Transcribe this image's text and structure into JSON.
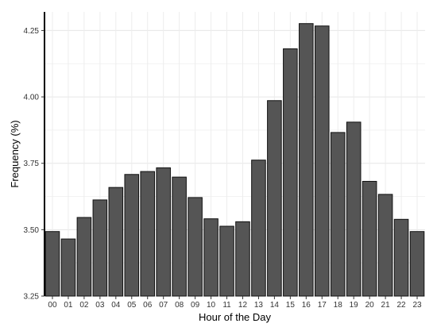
{
  "chart_data": {
    "type": "bar",
    "title": "",
    "xlabel": "Hour of the Day",
    "ylabel": "Frequency (%)",
    "categories": [
      "00",
      "01",
      "02",
      "03",
      "04",
      "05",
      "06",
      "07",
      "08",
      "09",
      "10",
      "11",
      "12",
      "13",
      "14",
      "15",
      "16",
      "17",
      "18",
      "19",
      "20",
      "21",
      "22",
      "23"
    ],
    "values": [
      3.493,
      3.465,
      3.546,
      3.612,
      3.659,
      3.708,
      3.719,
      3.733,
      3.698,
      3.621,
      3.541,
      3.513,
      3.53,
      3.762,
      3.986,
      4.181,
      4.276,
      4.267,
      3.866,
      3.905,
      3.682,
      3.633,
      3.539,
      3.493
    ],
    "ylim": [
      3.25,
      4.32
    ],
    "yticks": [
      3.25,
      3.5,
      3.75,
      4.0,
      4.25
    ],
    "ytick_labels": [
      "3.25",
      "3.50",
      "3.75",
      "4.00",
      "4.25"
    ],
    "grid": true,
    "colors": {
      "bar_fill": "#555555",
      "bar_stroke": "#111111",
      "grid": "#e6e6e6",
      "axis": "#000000"
    }
  }
}
